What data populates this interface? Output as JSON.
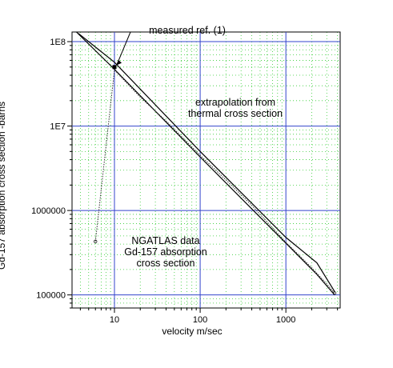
{
  "chart_data": {
    "type": "line",
    "xlabel": "velocity m/sec",
    "ylabel": "Gd-157 absorption cross section -barns",
    "x_scale": "log",
    "y_scale": "log",
    "xlim": [
      3.2,
      4300
    ],
    "ylim": [
      70000,
      130000000
    ],
    "x_ticks": [
      {
        "value": 10,
        "label": "10"
      },
      {
        "value": 100,
        "label": "100"
      },
      {
        "value": 1000,
        "label": "1000"
      }
    ],
    "y_ticks": [
      {
        "value": 100000,
        "label": "100000"
      },
      {
        "value": 1000000,
        "label": "1000000"
      },
      {
        "value": 10000000,
        "label": "1E7"
      },
      {
        "value": 100000000,
        "label": "1E8"
      }
    ],
    "grid": true,
    "annotations": [
      {
        "lines": [
          "measured ref. (1)"
        ],
        "anchor": "upper-center"
      },
      {
        "lines": [
          "extrapolation from",
          "thermal cross section"
        ],
        "anchor": "upper-right"
      },
      {
        "lines": [
          "NGATLAS data",
          "Gd-157 absorption",
          "cross section"
        ],
        "anchor": "lower-left"
      }
    ],
    "series": [
      {
        "x": [
          3.8,
          10,
          100,
          1000,
          2300,
          3700
        ],
        "y": [
          125000000,
          57000000,
          5000000,
          480000,
          240000,
          110000
        ]
      },
      {
        "x": [
          3.6,
          10,
          100,
          1000,
          2300,
          3700
        ],
        "y": [
          130000000,
          47000000,
          4300000,
          410000,
          175000,
          100000
        ]
      },
      {
        "x": [
          6,
          10,
          20,
          40,
          100,
          200,
          400,
          1000,
          2000,
          3000,
          3700
        ],
        "y": [
          430000,
          46000000,
          22000000,
          11500000,
          4500000,
          2300000,
          1150000,
          420000,
          210000,
          135000,
          105000
        ]
      }
    ],
    "marker": {
      "x": 10,
      "y": 50000000,
      "label": "measured ref. (1)"
    }
  }
}
